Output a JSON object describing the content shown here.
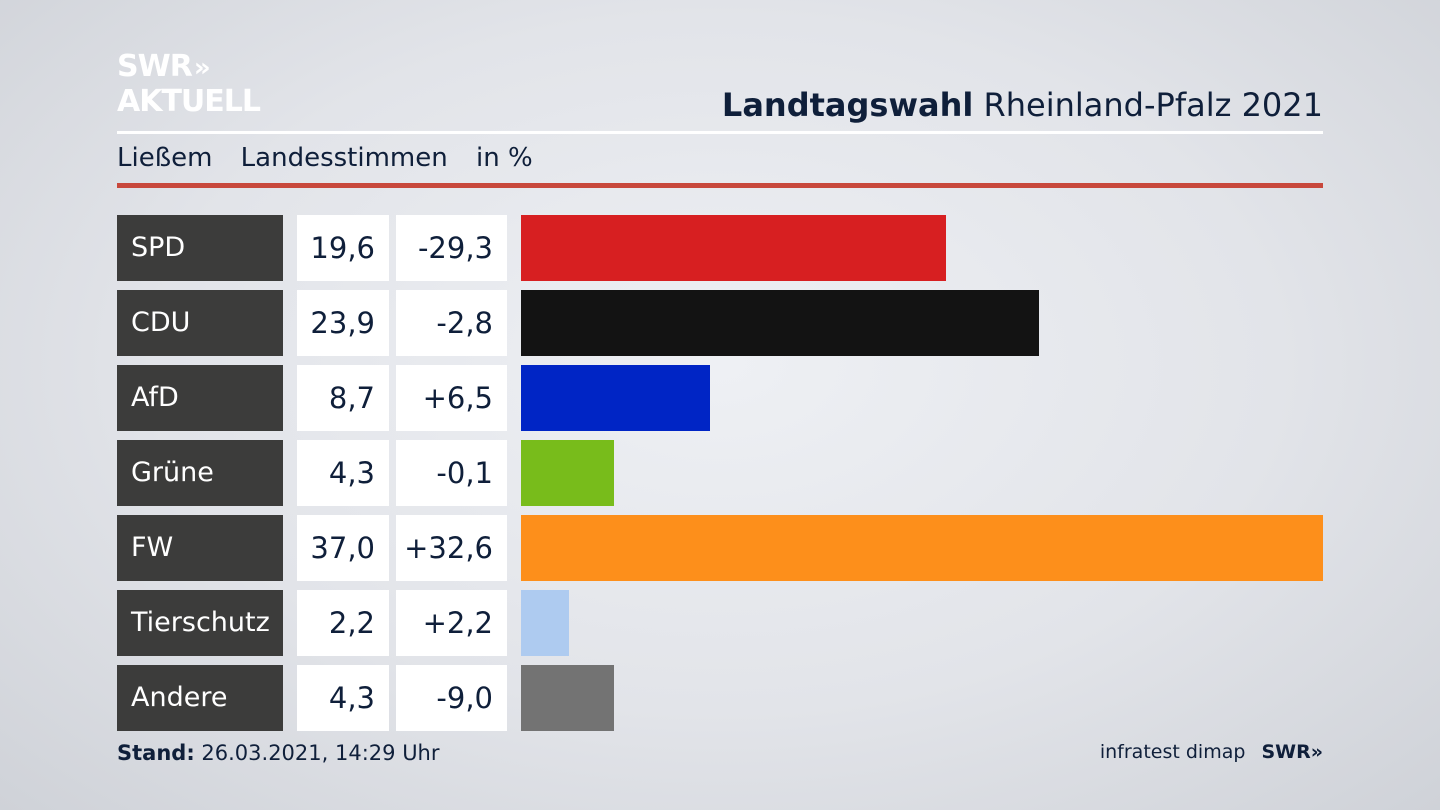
{
  "brand": {
    "line1": "SWR",
    "arrows": "»",
    "line2": "AKTUELL"
  },
  "header": {
    "title_bold": "Landtagswahl",
    "title_rest": "Rheinland-Pfalz 2021",
    "subtitle_place": "Ließem",
    "subtitle_type": "Landesstimmen",
    "subtitle_unit": "in %"
  },
  "footer": {
    "stand_label": "Stand:",
    "stand_value": "26.03.2021, 14:29 Uhr",
    "source": "infratest dimap",
    "brand": "SWR»"
  },
  "chart_data": {
    "type": "bar",
    "orientation": "horizontal",
    "categories": [
      "SPD",
      "CDU",
      "AfD",
      "Grüne",
      "FW",
      "Tierschutz",
      "Andere"
    ],
    "values": [
      19.6,
      23.9,
      8.7,
      4.3,
      37.0,
      2.2,
      4.3
    ],
    "value_labels": [
      "19,6",
      "23,9",
      "8,7",
      "4,3",
      "37,0",
      "2,2",
      "4,3"
    ],
    "diff_labels": [
      "-29,3",
      "-2,8",
      "+6,5",
      "-0,1",
      "+32,6",
      "+2,2",
      "-9,0"
    ],
    "colors": [
      "#d71f21",
      "#131313",
      "#0025c5",
      "#78bc1b",
      "#fd8f1b",
      "#aecbf0",
      "#737373"
    ],
    "xlim": [
      0,
      37.0
    ]
  }
}
